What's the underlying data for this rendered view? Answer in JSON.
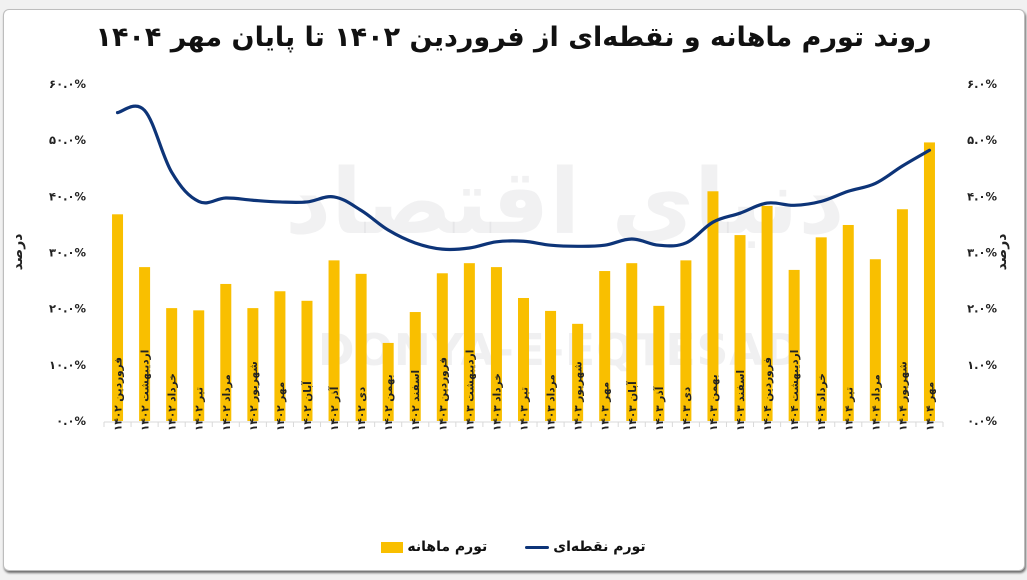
{
  "title": "روند تورم ماهانه و نقطه‌ای از فروردین ۱۴۰۲ تا پایان مهر ۱۴۰۴",
  "watermark": {
    "latin": "DONYA-E-EQTESAD",
    "persian": "دنیای اقتصاد"
  },
  "legend": {
    "line_label": "تورم نقطه‌ای",
    "bar_label": "تورم ماهانه"
  },
  "colors": {
    "bar": "#F9BF00",
    "line": "#0D3478",
    "axis": "#d9d9d9"
  },
  "chart_data": {
    "type": "bar+line",
    "title": "روند تورم ماهانه و نقطه‌ای از فروردین ۱۴۰۲ تا پایان مهر ۱۴۰۴",
    "xlabel": "",
    "ylabel_left": "درصد",
    "ylabel_right": "درصد",
    "ylim_left": [
      0,
      60
    ],
    "ylim_right": [
      0,
      6
    ],
    "yticks_left": [
      "۰.۰%",
      "۱۰.۰%",
      "۲۰.۰%",
      "۳۰.۰%",
      "۴۰.۰%",
      "۵۰.۰%",
      "۶۰.۰%"
    ],
    "yticks_right": [
      "۰.۰%",
      "۱.۰%",
      "۲.۰%",
      "۳.۰%",
      "۴.۰%",
      "۵.۰%",
      "۶.۰%"
    ],
    "grid": false,
    "legend_position": "bottom",
    "categories": [
      "فروردین ۱۴۰۲",
      "اردیبهشت ۱۴۰۲",
      "خرداد ۱۴۰۲",
      "تیر ۱۴۰۲",
      "مرداد ۱۴۰۲",
      "شهریور ۱۴۰۲",
      "مهر ۱۴۰۲",
      "آبان ۱۴۰۲",
      "آذر ۱۴۰۲",
      "دی ۱۴۰۲",
      "بهمن ۱۴۰۲",
      "اسفند ۱۴۰۲",
      "فروردین ۱۴۰۳",
      "اردیبهشت ۱۴۰۳",
      "خرداد ۱۴۰۳",
      "تیر ۱۴۰۳",
      "مرداد ۱۴۰۳",
      "شهریور ۱۴۰۳",
      "مهر ۱۴۰۳",
      "آبان ۱۴۰۳",
      "آذر ۱۴۰۳",
      "دی ۱۴۰۳",
      "بهمن ۱۴۰۳",
      "اسفند ۱۴۰۳",
      "فروردین ۱۴۰۴",
      "اردیبهشت ۱۴۰۴",
      "خرداد ۱۴۰۴",
      "تیر ۱۴۰۴",
      "مرداد ۱۴۰۴",
      "شهریور ۱۴۰۴",
      "مهر ۱۴۰۴"
    ],
    "series": [
      {
        "name": "تورم ماهانه",
        "type": "bar",
        "axis": "right",
        "values": [
          3.68,
          2.74,
          2.01,
          1.97,
          2.44,
          2.01,
          2.31,
          2.14,
          2.86,
          2.62,
          1.39,
          1.94,
          2.63,
          2.81,
          2.74,
          2.19,
          1.96,
          1.73,
          2.67,
          2.81,
          2.05,
          2.86,
          4.09,
          3.31,
          3.83,
          2.69,
          3.27,
          3.49,
          2.88,
          3.77,
          4.96
        ]
      },
      {
        "name": "تورم نقطه‌ای",
        "type": "line",
        "axis": "left",
        "values": [
          54.9,
          55.3,
          44.3,
          39.1,
          39.7,
          39.3,
          39.0,
          39.0,
          39.9,
          37.5,
          34.0,
          31.7,
          30.6,
          30.8,
          31.9,
          32.0,
          31.3,
          31.1,
          31.3,
          32.4,
          31.3,
          31.7,
          35.4,
          37.0,
          38.8,
          38.4,
          39.1,
          40.9,
          42.3,
          45.4,
          48.2
        ]
      }
    ]
  }
}
